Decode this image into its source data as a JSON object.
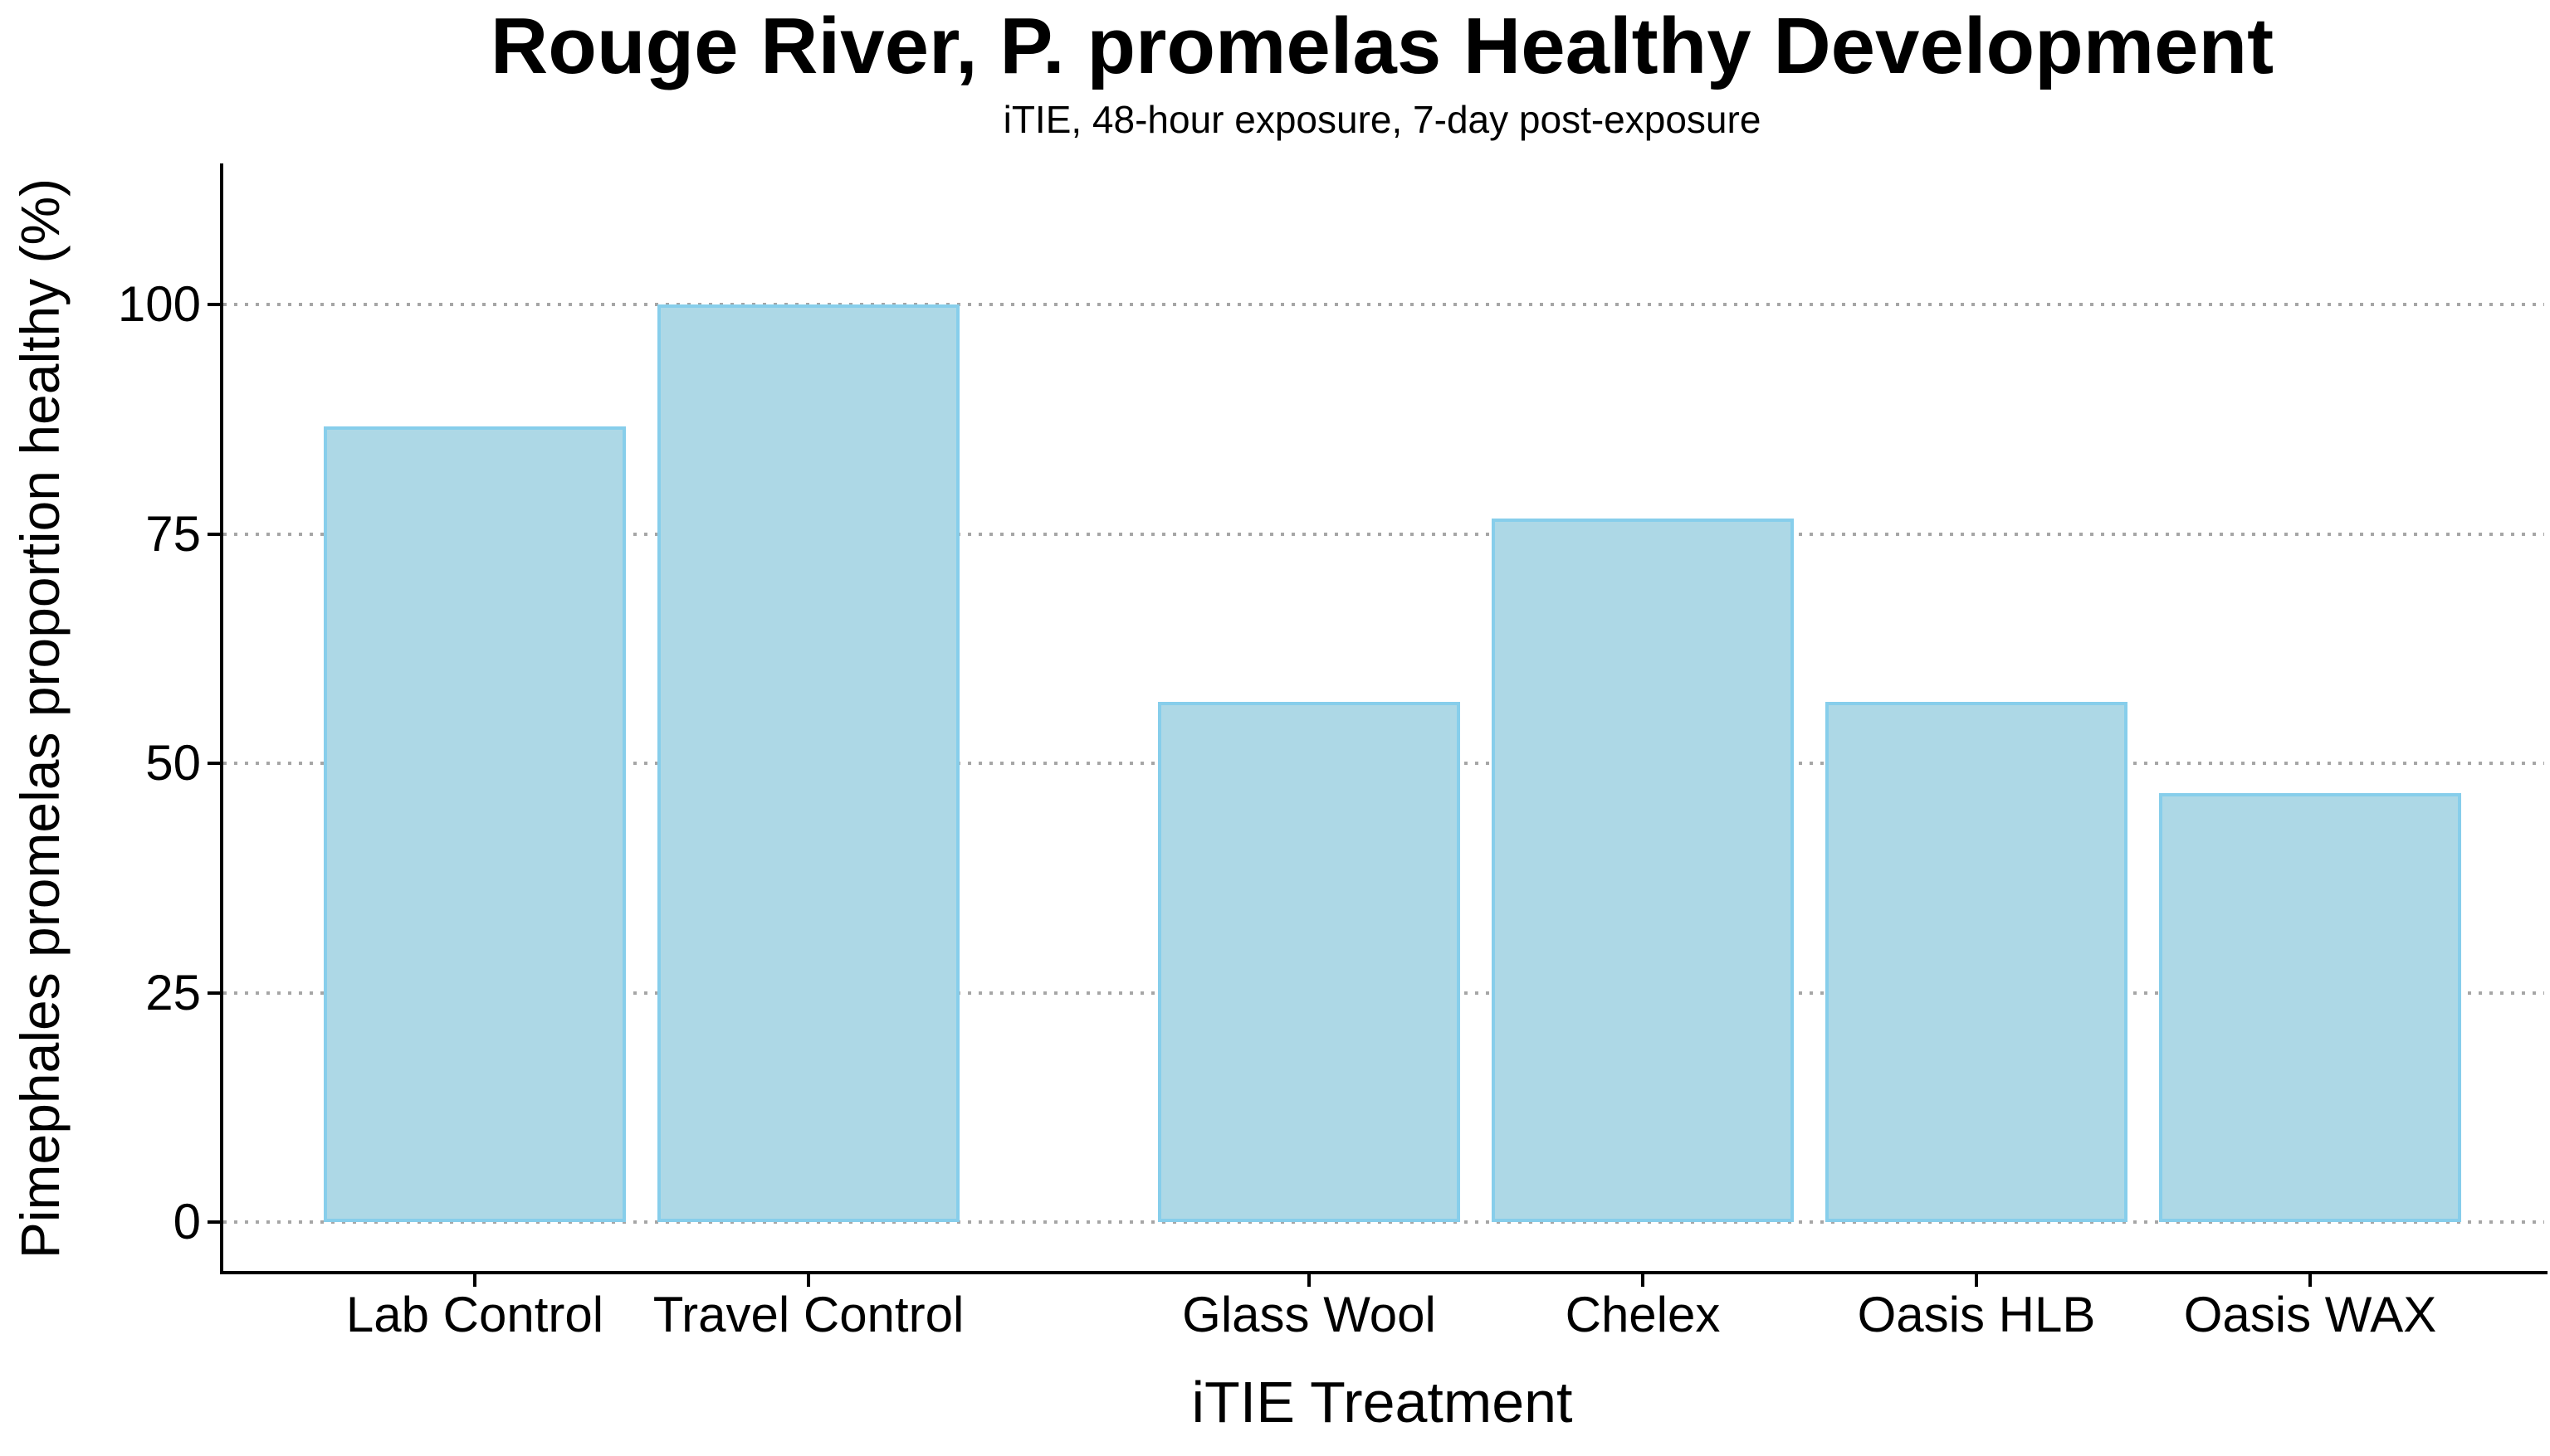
{
  "page": {
    "background_color": "#ffffff",
    "text_color": "#000000"
  },
  "chart_data": {
    "type": "bar",
    "title": "Rouge River, P. promelas Healthy Development",
    "subtitle": "iTIE, 48-hour exposure, 7-day post-exposure",
    "xlabel": "iTIE Treatment",
    "ylabel": "Pimephales promelas proportion healthy (%)",
    "categories": [
      "Lab Control",
      "Travel Control",
      "Glass Wool",
      "Chelex",
      "Oasis HLB",
      "Oasis WAX"
    ],
    "values": [
      86.7,
      100,
      56.7,
      76.7,
      56.7,
      46.7
    ],
    "yticks": [
      0,
      25,
      50,
      75,
      100
    ],
    "ylim": [
      -5.5,
      115.5
    ],
    "legend": "none",
    "grid": "horizontal dotted lines at y ticks",
    "bar_fill_color": "#ADD8E6",
    "bar_border_color": "#87CEEB",
    "gridline_color": "#a6a6a6",
    "axis_color": "#000000",
    "group_slots": [
      0,
      1,
      2.5,
      3.5,
      4.5,
      5.5
    ],
    "group_gap_note": "extra spacing between control bars and treatment bars"
  }
}
